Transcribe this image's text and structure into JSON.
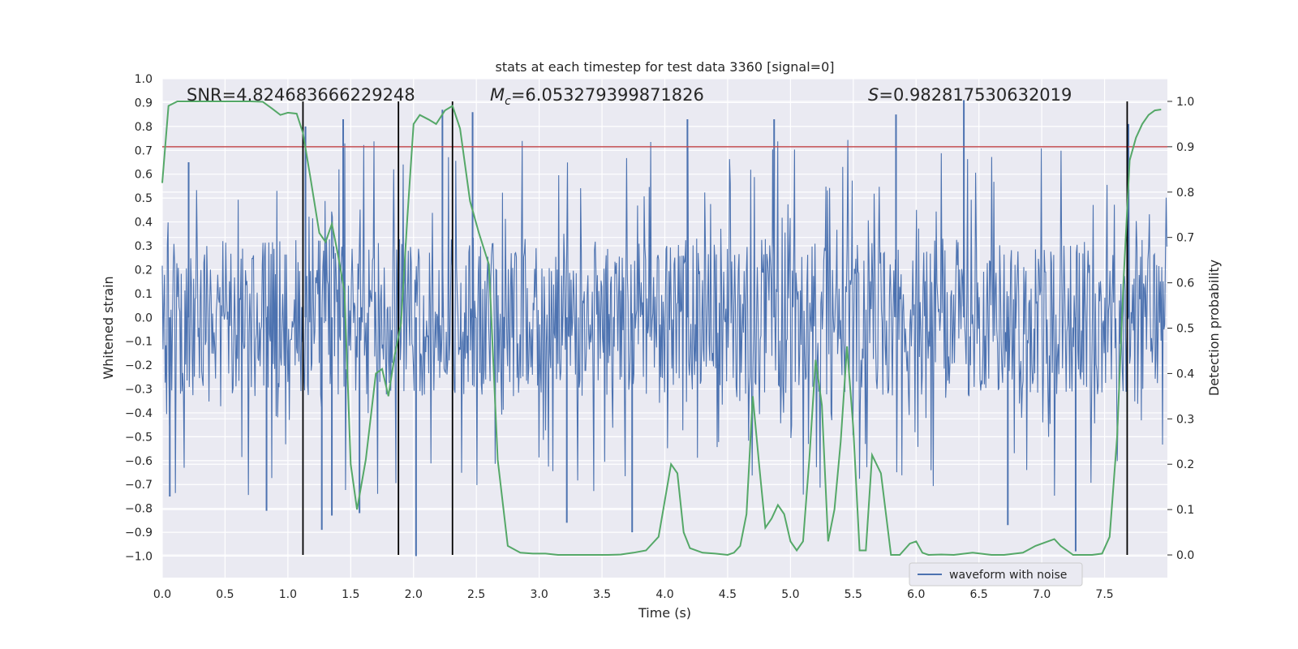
{
  "chart_data": {
    "type": "line",
    "title": "stats at each timestep for test data 3360 [signal=0]",
    "xlabel": "Time (s)",
    "ylabel": "Whitened strain",
    "y2label": "Detection probability",
    "xlim": [
      0.0,
      8.0
    ],
    "ylim": [
      -1.09,
      1.0
    ],
    "y2lim": [
      -0.05,
      1.05
    ],
    "x_ticks": [
      0.0,
      0.5,
      1.0,
      1.5,
      2.0,
      2.5,
      3.0,
      3.5,
      4.0,
      4.5,
      5.0,
      5.5,
      6.0,
      6.5,
      7.0,
      7.5
    ],
    "x_tick_labels": [
      "0.0",
      "0.5",
      "1.0",
      "1.5",
      "2.0",
      "2.5",
      "3.0",
      "3.5",
      "4.0",
      "4.5",
      "5.0",
      "5.5",
      "6.0",
      "6.5",
      "7.0",
      "7.5"
    ],
    "y_ticks": [
      -1.0,
      -0.9,
      -0.8,
      -0.7,
      -0.6,
      -0.5,
      -0.4,
      -0.3,
      -0.2,
      -0.1,
      0.0,
      0.1,
      0.2,
      0.3,
      0.4,
      0.5,
      0.6,
      0.7,
      0.8,
      0.9,
      1.0
    ],
    "y_tick_labels": [
      "−1.0",
      "−0.9",
      "−0.8",
      "−0.7",
      "−0.6",
      "−0.5",
      "−0.4",
      "−0.3",
      "−0.2",
      "−0.1",
      "0.0",
      "0.1",
      "0.2",
      "0.3",
      "0.4",
      "0.5",
      "0.6",
      "0.7",
      "0.8",
      "0.9",
      "1.0"
    ],
    "y2_ticks": [
      0.0,
      0.1,
      0.2,
      0.3,
      0.4,
      0.5,
      0.6,
      0.7,
      0.8,
      0.9,
      1.0
    ],
    "y2_tick_labels": [
      "0.0",
      "0.1",
      "0.2",
      "0.3",
      "0.4",
      "0.5",
      "0.6",
      "0.7",
      "0.8",
      "0.9",
      "1.0"
    ],
    "grid": true,
    "legend": {
      "placement": "lower-right",
      "entries": [
        "waveform with noise"
      ]
    },
    "annotations": {
      "snr": "SNR=4.824683666229248",
      "mc_symbol": "M",
      "mc_subscript": "c",
      "mc_value": "=6.053279399871826",
      "s_symbol": "S",
      "s_value": "=0.982817530632019"
    },
    "threshold": {
      "axis": "y2",
      "value": 0.9
    },
    "vertical_lines": [
      1.12,
      1.88,
      2.31,
      7.68
    ],
    "waveform": {
      "name": "waveform with noise",
      "x_range": [
        0.0,
        8.0
      ],
      "typical_amplitude": 0.33,
      "max_abs_value": 1.0,
      "peaks": [
        {
          "x": 0.06,
          "y": -0.75
        },
        {
          "x": 0.21,
          "y": 0.65
        },
        {
          "x": 0.83,
          "y": -0.81
        },
        {
          "x": 1.14,
          "y": 0.8
        },
        {
          "x": 1.27,
          "y": -0.89
        },
        {
          "x": 1.35,
          "y": -0.83
        },
        {
          "x": 1.44,
          "y": 0.83
        },
        {
          "x": 1.57,
          "y": -0.82
        },
        {
          "x": 2.02,
          "y": -1.0
        },
        {
          "x": 2.23,
          "y": 0.87
        },
        {
          "x": 2.47,
          "y": 0.86
        },
        {
          "x": 3.22,
          "y": -0.86
        },
        {
          "x": 3.74,
          "y": -0.9
        },
        {
          "x": 4.18,
          "y": 0.83
        },
        {
          "x": 4.87,
          "y": 0.83
        },
        {
          "x": 5.84,
          "y": 0.85
        },
        {
          "x": 6.38,
          "y": 0.91
        },
        {
          "x": 6.73,
          "y": -0.87
        },
        {
          "x": 7.27,
          "y": -0.98
        },
        {
          "x": 7.69,
          "y": 0.81
        }
      ]
    },
    "series": [
      {
        "name": "",
        "axis": "y2",
        "x": [
          0.0,
          0.05,
          0.12,
          0.2,
          0.3,
          0.4,
          0.5,
          0.6,
          0.7,
          0.8,
          0.87,
          0.94,
          1.0,
          1.07,
          1.12,
          1.18,
          1.25,
          1.3,
          1.35,
          1.4,
          1.45,
          1.5,
          1.55,
          1.62,
          1.7,
          1.75,
          1.8,
          1.85,
          1.9,
          1.95,
          2.0,
          2.05,
          2.12,
          2.18,
          2.25,
          2.31,
          2.37,
          2.45,
          2.52,
          2.6,
          2.67,
          2.75,
          2.85,
          2.95,
          3.05,
          3.15,
          3.3,
          3.45,
          3.55,
          3.65,
          3.75,
          3.85,
          3.95,
          4.05,
          4.1,
          4.15,
          4.2,
          4.3,
          4.4,
          4.5,
          4.55,
          4.6,
          4.65,
          4.7,
          4.75,
          4.8,
          4.85,
          4.9,
          4.95,
          5.0,
          5.05,
          5.1,
          5.15,
          5.2,
          5.25,
          5.3,
          5.35,
          5.4,
          5.45,
          5.5,
          5.55,
          5.6,
          5.65,
          5.72,
          5.8,
          5.87,
          5.95,
          6.0,
          6.05,
          6.1,
          6.2,
          6.3,
          6.45,
          6.6,
          6.7,
          6.85,
          6.95,
          7.05,
          7.1,
          7.15,
          7.25,
          7.32,
          7.4,
          7.48,
          7.54,
          7.6,
          7.65,
          7.7,
          7.75,
          7.8,
          7.85,
          7.9,
          7.95
        ],
        "y": [
          0.82,
          0.99,
          1.0,
          1.0,
          1.0,
          1.0,
          1.0,
          1.0,
          1.0,
          0.999,
          0.985,
          0.97,
          0.975,
          0.973,
          0.93,
          0.83,
          0.71,
          0.69,
          0.73,
          0.66,
          0.58,
          0.2,
          0.1,
          0.21,
          0.4,
          0.41,
          0.35,
          0.44,
          0.51,
          0.74,
          0.95,
          0.97,
          0.96,
          0.95,
          0.98,
          0.99,
          0.94,
          0.78,
          0.71,
          0.64,
          0.21,
          0.02,
          0.005,
          0.003,
          0.003,
          0.0,
          0.0,
          0.0,
          0.0,
          0.001,
          0.005,
          0.01,
          0.04,
          0.2,
          0.18,
          0.05,
          0.015,
          0.005,
          0.003,
          0.0,
          0.005,
          0.02,
          0.09,
          0.35,
          0.2,
          0.06,
          0.08,
          0.11,
          0.09,
          0.03,
          0.01,
          0.03,
          0.21,
          0.43,
          0.33,
          0.03,
          0.1,
          0.25,
          0.46,
          0.28,
          0.01,
          0.01,
          0.22,
          0.18,
          0.0,
          0.0,
          0.025,
          0.03,
          0.005,
          0.0,
          0.001,
          0.0,
          0.005,
          0.0,
          0.0,
          0.005,
          0.02,
          0.03,
          0.035,
          0.02,
          0.0,
          0.0,
          0.0,
          0.003,
          0.04,
          0.26,
          0.6,
          0.87,
          0.92,
          0.95,
          0.97,
          0.98,
          0.982
        ]
      }
    ]
  }
}
